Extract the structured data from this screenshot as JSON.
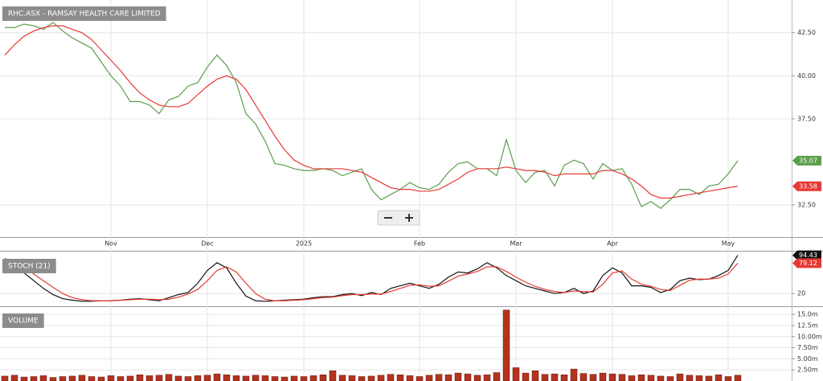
{
  "chart_data": [
    {
      "type": "line",
      "title": "RHC.ASX - RAMSAY HEALTH CARE LIMITED",
      "grid": true,
      "categories": [
        null,
        null,
        null,
        null,
        null,
        null,
        null,
        null,
        null,
        null,
        null,
        "Nov",
        null,
        null,
        null,
        null,
        null,
        null,
        null,
        null,
        null,
        "Dec",
        null,
        null,
        null,
        null,
        null,
        null,
        null,
        null,
        null,
        "2025",
        null,
        null,
        null,
        null,
        null,
        null,
        null,
        null,
        null,
        null,
        null,
        "Feb",
        null,
        null,
        null,
        null,
        null,
        null,
        null,
        null,
        null,
        "Mar",
        null,
        null,
        null,
        null,
        null,
        null,
        null,
        null,
        null,
        "Apr",
        null,
        null,
        null,
        null,
        null,
        null,
        null,
        null,
        null,
        null,
        null,
        "May",
        null
      ],
      "ylim": [
        30.63,
        44.4
      ],
      "yticks": [
        {
          "value": 32.5,
          "label": "32.50"
        },
        {
          "value": 37.5,
          "label": "37.50"
        },
        {
          "value": 40,
          "label": "40.00"
        },
        {
          "value": 42.5,
          "label": "42.50"
        }
      ],
      "series": [
        {
          "color": "#5a9e4b",
          "values": [
            42.8,
            42.8,
            43.0,
            42.9,
            42.7,
            43.1,
            42.6,
            42.2,
            41.9,
            41.6,
            40.8,
            40.0,
            39.4,
            38.5,
            38.5,
            38.3,
            37.8,
            38.6,
            38.8,
            39.4,
            39.6,
            40.5,
            41.2,
            40.6,
            39.6,
            37.8,
            37.2,
            36.2,
            34.9,
            34.8,
            34.6,
            34.5,
            34.5,
            34.6,
            34.5,
            34.2,
            34.4,
            34.6,
            33.4,
            32.8,
            33.1,
            33.4,
            33.8,
            33.5,
            33.4,
            33.7,
            34.4,
            34.9,
            35.0,
            34.6,
            34.6,
            34.2,
            36.3,
            34.5,
            33.8,
            34.4,
            34.5,
            33.6,
            34.8,
            35.1,
            34.9,
            34.0,
            34.9,
            34.5,
            34.6,
            33.7,
            32.4,
            32.7,
            32.3,
            32.8,
            33.4,
            33.4,
            33.1,
            33.6,
            33.7,
            34.3,
            35.07
          ]
        },
        {
          "color": "#e53935",
          "values": [
            41.2,
            41.8,
            42.3,
            42.6,
            42.8,
            42.9,
            42.9,
            42.7,
            42.5,
            42.1,
            41.5,
            40.9,
            40.3,
            39.6,
            39.0,
            38.6,
            38.3,
            38.2,
            38.2,
            38.4,
            38.9,
            39.4,
            39.8,
            40.0,
            39.8,
            39.2,
            38.3,
            37.4,
            36.5,
            35.7,
            35.1,
            34.8,
            34.6,
            34.6,
            34.6,
            34.6,
            34.5,
            34.4,
            34.1,
            33.8,
            33.5,
            33.4,
            33.4,
            33.3,
            33.3,
            33.4,
            33.7,
            34.0,
            34.4,
            34.6,
            34.6,
            34.6,
            34.7,
            34.6,
            34.5,
            34.5,
            34.4,
            34.2,
            34.3,
            34.3,
            34.3,
            34.3,
            34.5,
            34.5,
            34.3,
            34.0,
            33.6,
            33.1,
            32.9,
            32.9,
            33.0,
            33.1,
            33.2,
            33.3,
            33.4,
            33.5,
            33.58
          ]
        }
      ]
    },
    {
      "type": "line",
      "title": "STOCH (21)",
      "ylim": [
        0,
        100
      ],
      "yticks": [
        20
      ],
      "series": [
        {
          "color": "#111111",
          "values": [
            88,
            80,
            60,
            45,
            30,
            18,
            10,
            7,
            5,
            5,
            6,
            6,
            7,
            9,
            10,
            8,
            6,
            12,
            18,
            22,
            40,
            65,
            80,
            70,
            40,
            15,
            6,
            5,
            6,
            7,
            8,
            9,
            12,
            14,
            14,
            18,
            20,
            16,
            22,
            18,
            30,
            35,
            40,
            35,
            30,
            38,
            52,
            62,
            60,
            68,
            80,
            70,
            55,
            45,
            35,
            30,
            25,
            20,
            22,
            30,
            20,
            25,
            55,
            70,
            60,
            35,
            35,
            32,
            22,
            28,
            45,
            50,
            47,
            48,
            55,
            65,
            94.43
          ]
        },
        {
          "color": "#e53935",
          "values": [
            85,
            84,
            72,
            58,
            45,
            32,
            20,
            12,
            8,
            6,
            6,
            6,
            7,
            8,
            9,
            9,
            8,
            9,
            13,
            19,
            28,
            45,
            65,
            72,
            62,
            40,
            20,
            9,
            6,
            6,
            7,
            8,
            10,
            12,
            13,
            16,
            18,
            18,
            19,
            19,
            24,
            30,
            36,
            37,
            34,
            35,
            44,
            54,
            58,
            63,
            72,
            72,
            63,
            52,
            42,
            34,
            28,
            24,
            22,
            25,
            24,
            23,
            38,
            60,
            64,
            48,
            38,
            34,
            28,
            26,
            36,
            46,
            48,
            48,
            50,
            58,
            79.12
          ]
        }
      ]
    },
    {
      "type": "bar",
      "title": "VOLUME",
      "color": "#b5331e",
      "ylim": [
        0,
        16300000
      ],
      "yticks": [
        {
          "value": 2500000,
          "label": "2.50m"
        },
        {
          "value": 5000000,
          "label": "5.00m"
        },
        {
          "value": 7500000,
          "label": "7.50m"
        },
        {
          "value": 10000000,
          "label": "10.00m"
        },
        {
          "value": 12500000,
          "label": "12.5m"
        },
        {
          "value": 15000000,
          "label": "15.0m"
        }
      ],
      "values": [
        1100000,
        1300000,
        900000,
        1000000,
        1200000,
        800000,
        1000000,
        1100000,
        1300000,
        1000000,
        900000,
        1200000,
        1000000,
        1100000,
        1400000,
        1200000,
        1300000,
        1500000,
        1100000,
        1000000,
        1200000,
        1300000,
        1600000,
        1400000,
        1200000,
        1100000,
        1300000,
        1200000,
        1000000,
        900000,
        1100000,
        1000000,
        1200000,
        1400000,
        2300000,
        1300000,
        1200000,
        1000000,
        1100000,
        1300000,
        1500000,
        1400000,
        1200000,
        1000000,
        1300000,
        1500000,
        1400000,
        1800000,
        1600000,
        1300000,
        1400000,
        1900000,
        16000000,
        3000000,
        1800000,
        2300000,
        1500000,
        1600000,
        1400000,
        2700000,
        1700000,
        1500000,
        1800000,
        1600000,
        1500000,
        1200000,
        1400000,
        1300000,
        1100000,
        1000000,
        1600000,
        1300000,
        1200000,
        1100000,
        1400000,
        1000000,
        1300000
      ]
    }
  ]
}
